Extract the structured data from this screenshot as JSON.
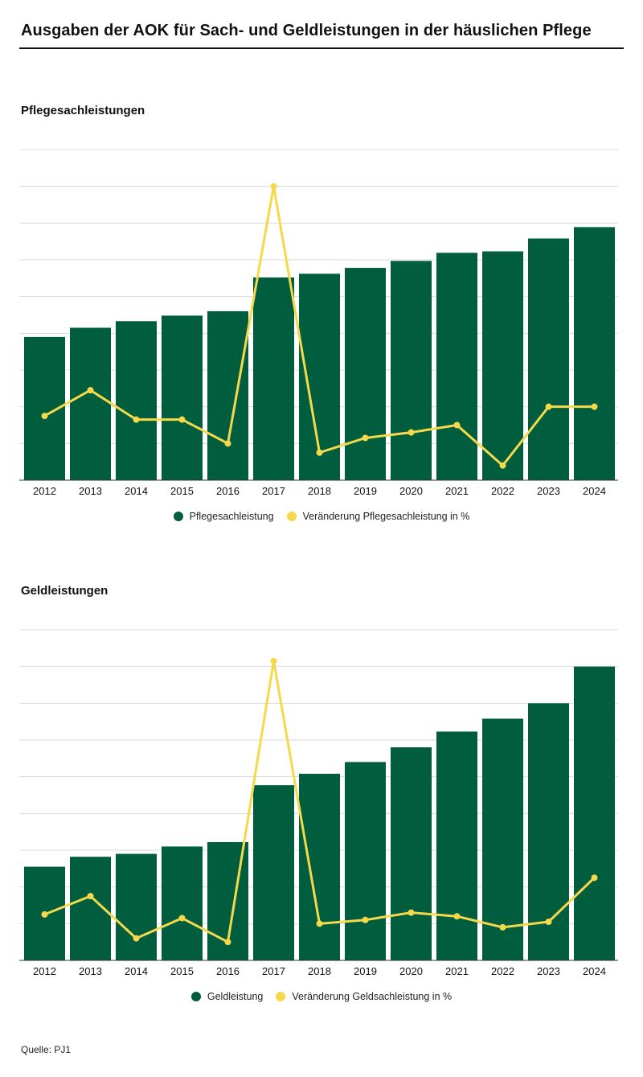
{
  "header": {
    "title": "Ausgaben der AOK für Sach- und Geldleistungen in der häuslichen Pflege"
  },
  "colors": {
    "bar": "#005e3f",
    "line": "#f5d94a",
    "grid": "#d9d9d9",
    "axis": "#333333"
  },
  "chart_data": [
    {
      "type": "bar",
      "title": "Pflegesachleistungen",
      "categories": [
        "2012",
        "2013",
        "2014",
        "2015",
        "2016",
        "2017",
        "2018",
        "2019",
        "2020",
        "2021",
        "2022",
        "2023",
        "2024"
      ],
      "ylim": [
        0,
        9
      ],
      "grid": true,
      "series": [
        {
          "name": "Pflegesachleistung",
          "type": "bar",
          "values": [
            3.9,
            4.15,
            4.33,
            4.48,
            4.6,
            5.52,
            5.62,
            5.78,
            5.97,
            6.19,
            6.23,
            6.58,
            6.89
          ]
        }
      ],
      "line_series": {
        "name": "Veränderung Pflegesachleistung in %",
        "ylim": [
          0,
          18
        ],
        "values": [
          3.5,
          4.9,
          3.3,
          3.3,
          2.0,
          16.0,
          1.5,
          2.3,
          2.6,
          3.0,
          0.8,
          4.0,
          4.0
        ]
      },
      "legend": [
        "Pflegesachleistung",
        "Veränderung Pflegesachleistung in %"
      ],
      "legend_position": "bottom-center"
    },
    {
      "type": "bar",
      "title": "Geldleistungen",
      "categories": [
        "2012",
        "2013",
        "2014",
        "2015",
        "2016",
        "2017",
        "2018",
        "2019",
        "2020",
        "2021",
        "2022",
        "2023",
        "2024"
      ],
      "ylim": [
        0,
        9
      ],
      "grid": true,
      "series": [
        {
          "name": "Geldleistung",
          "type": "bar",
          "values": [
            2.55,
            2.82,
            2.9,
            3.1,
            3.22,
            4.77,
            5.08,
            5.4,
            5.8,
            6.23,
            6.58,
            7.0,
            8.0
          ]
        }
      ],
      "line_series": {
        "name": "Veränderung Geldsachleistung in %",
        "ylim": [
          0,
          18
        ],
        "values": [
          2.5,
          3.5,
          1.2,
          2.3,
          1.0,
          16.3,
          2.0,
          2.2,
          2.6,
          2.4,
          1.8,
          2.1,
          4.5
        ]
      },
      "legend": [
        "Geldleistung",
        "Veränderung Geldsachleistung in %"
      ],
      "legend_position": "bottom-center"
    }
  ],
  "footer": {
    "source": "Quelle: PJ1"
  }
}
